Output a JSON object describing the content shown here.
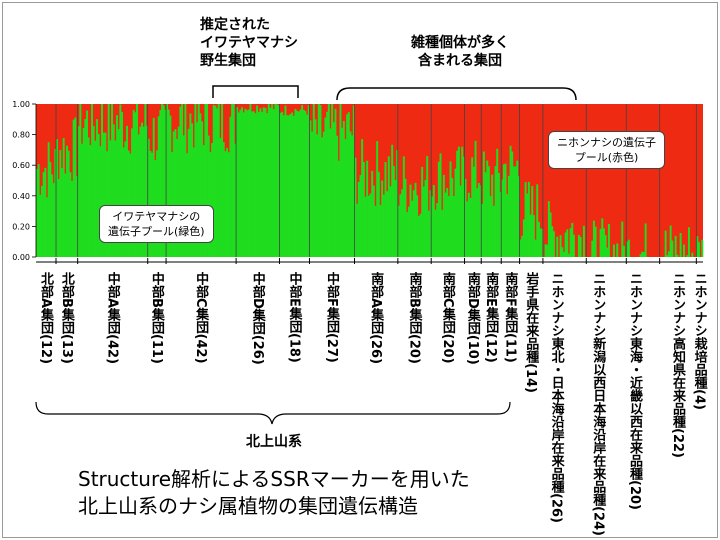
{
  "chart_data": {
    "type": "bar",
    "stacked": true,
    "yticks": [
      "1.00",
      "0.80",
      "0.60",
      "0.40",
      "0.20",
      "0.00"
    ],
    "ylim": [
      0,
      1
    ],
    "colors": {
      "wild": "#1fdd1f",
      "japanese": "#ee2a12"
    },
    "groups": [
      {
        "label": "北部A集団(12)",
        "n": 12,
        "green": 0.58
      },
      {
        "label": "北部B集団(13)",
        "n": 13,
        "green": 0.7
      },
      {
        "label": "中部A集団(42)",
        "n": 42,
        "green": 0.88
      },
      {
        "label": "中部B集団(11)",
        "n": 11,
        "green": 0.8
      },
      {
        "label": "中部C集団(42)",
        "n": 42,
        "green": 0.9
      },
      {
        "label": "中部D集団(26)",
        "n": 26,
        "green": 0.98
      },
      {
        "label": "中部E集団(18)",
        "n": 18,
        "green": 0.96
      },
      {
        "label": "中部F集団(27)",
        "n": 27,
        "green": 0.82
      },
      {
        "label": "南部A集団(26)",
        "n": 26,
        "green": 0.55
      },
      {
        "label": "南部B集団(20)",
        "n": 20,
        "green": 0.48
      },
      {
        "label": "南部C集団(20)",
        "n": 20,
        "green": 0.52
      },
      {
        "label": "南部D集団(10)",
        "n": 10,
        "green": 0.55
      },
      {
        "label": "南部E集団(12)",
        "n": 12,
        "green": 0.5
      },
      {
        "label": "南部F集団(11)",
        "n": 11,
        "green": 0.58
      },
      {
        "label": "岩手県在来品種(14)",
        "n": 14,
        "green": 0.3
      },
      {
        "label": "ニホンナシ東北・日本海沿岸在来品種(26)",
        "n": 26,
        "green": 0.15
      },
      {
        "label": "ニホンナシ新潟以西日本海沿岸在来品種(24)",
        "n": 24,
        "green": 0.03
      },
      {
        "label": "ニホンナシ東海・近畿以西在来品種(20)",
        "n": 20,
        "green": 0.02
      },
      {
        "label": "ニホンナシ高知県在来品種(22)",
        "n": 22,
        "green": 0.03
      },
      {
        "label": "ニホンナシ栽培品種(4)",
        "n": 4,
        "green": 0.01
      }
    ]
  },
  "annotations": {
    "wild_group": "推定された\nイワテヤマナシ\n野生集団",
    "hybrid_group": "雑種個体が多く\n含まれる集団",
    "japanese_pool": "ニホンナシの遺伝子\nプール(赤色)",
    "wild_pool": "イワテヤマナシの\n遺伝子プール(緑色)"
  },
  "region_label": "北上山系",
  "title": "Structure解析によるSSRマーカーを用いた\n北上山系のナシ属植物の集団遺伝構造"
}
